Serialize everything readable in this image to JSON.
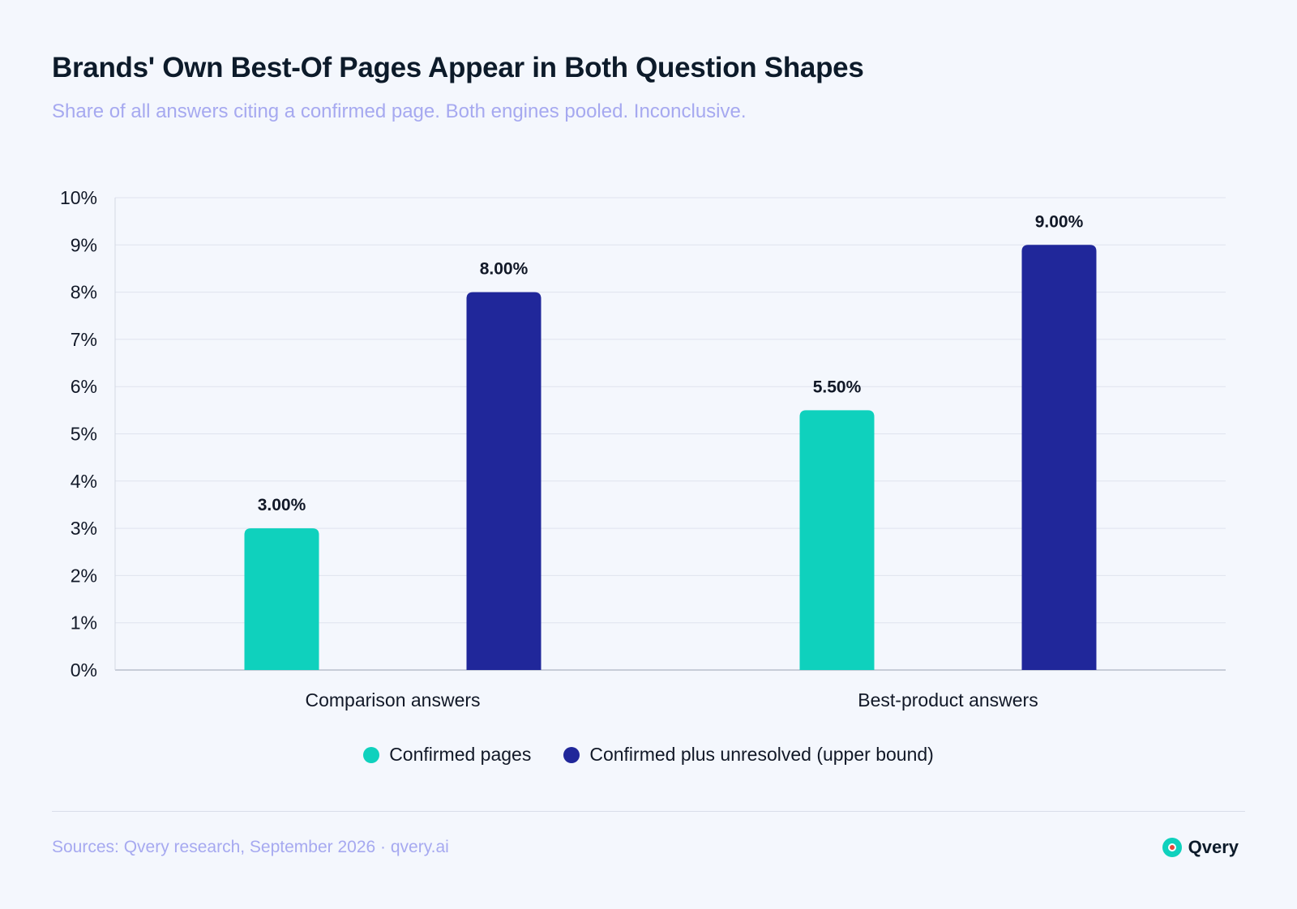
{
  "header": {
    "title": "Brands' Own Best-Of Pages Appear in Both Question Shapes",
    "subtitle": "Share of all answers citing a confirmed page. Both engines pooled. Inconclusive."
  },
  "footer": {
    "sources": "Sources: Qvery research, September 2026 · qvery.ai",
    "brand": "Qvery",
    "brand_icon": "qvery-logo-icon"
  },
  "colors": {
    "confirmed": "#0fd1bd",
    "upper_bound": "#20279a",
    "grid": "#dfe3ee",
    "axis_text": "#111827"
  },
  "chart_data": {
    "type": "bar",
    "title": "Brands' Own Best-Of Pages Appear in Both Question Shapes",
    "subtitle": "Share of all answers citing a confirmed page. Both engines pooled. Inconclusive.",
    "categories": [
      "Comparison answers",
      "Best-product answers"
    ],
    "series": [
      {
        "name": "Confirmed pages",
        "values": [
          3.0,
          5.5
        ],
        "labels": [
          "3.00%",
          "5.50%"
        ],
        "color": "#0fd1bd"
      },
      {
        "name": "Confirmed plus unresolved (upper bound)",
        "values": [
          8.0,
          9.0
        ],
        "labels": [
          "8.00%",
          "9.00%"
        ],
        "color": "#20279a"
      }
    ],
    "ylim": [
      0,
      10
    ],
    "yticks": [
      "0%",
      "1%",
      "2%",
      "3%",
      "4%",
      "5%",
      "6%",
      "7%",
      "8%",
      "9%",
      "10%"
    ],
    "xlabel": "",
    "ylabel": "",
    "grid": true,
    "legend_position": "bottom-center"
  }
}
